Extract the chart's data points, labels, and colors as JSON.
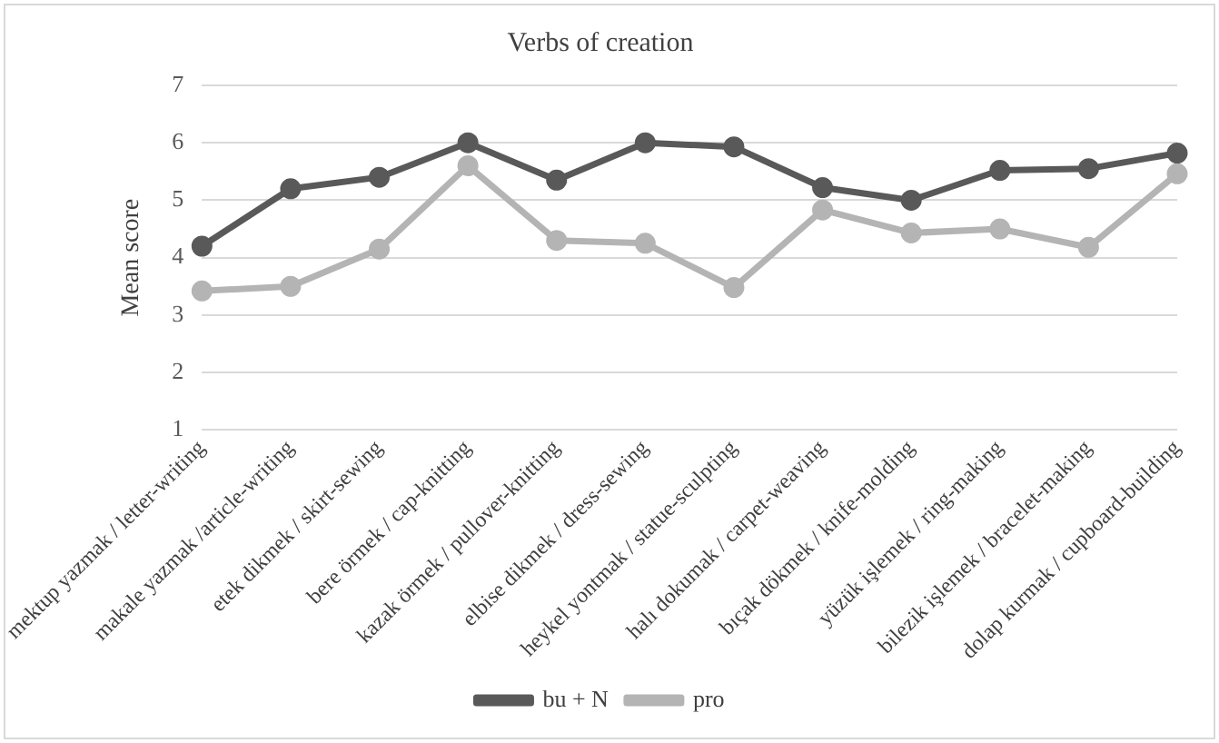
{
  "chart_data": {
    "type": "line",
    "title": "Verbs of creation",
    "ylabel": "Mean score",
    "categories": [
      "mektup yazmak / letter-writing",
      "makale yazmak /article-writing",
      "etek dikmek / skirt-sewing",
      "bere örmek / cap-knitting",
      "kazak örmek / pullover-knitting",
      "elbise dikmek / dress-sewing",
      "heykel yontmak / statue-sculpting",
      "halı dokumak / carpet-weaving",
      "bıçak dökmek / knife-molding",
      "yüzük işlemek / ring-making",
      "bilezik işlemek / bracelet-making",
      "dolap kurmak / cupboard-building"
    ],
    "series": [
      {
        "name": "bu + N",
        "color": "#595959",
        "values": [
          4.2,
          5.2,
          5.4,
          6.0,
          5.35,
          6.0,
          5.93,
          5.22,
          5.0,
          5.52,
          5.55,
          5.82
        ]
      },
      {
        "name": "pro",
        "color": "#b4b4b4",
        "values": [
          3.42,
          3.5,
          4.15,
          5.6,
          4.3,
          4.25,
          3.48,
          4.83,
          4.43,
          4.5,
          4.18,
          5.46
        ]
      }
    ],
    "ylim": [
      1,
      7
    ],
    "yticks": [
      1,
      2,
      3,
      4,
      5,
      6,
      7
    ],
    "grid": "y",
    "legend": "bottom",
    "marker": "circle",
    "line_style": "solid"
  }
}
